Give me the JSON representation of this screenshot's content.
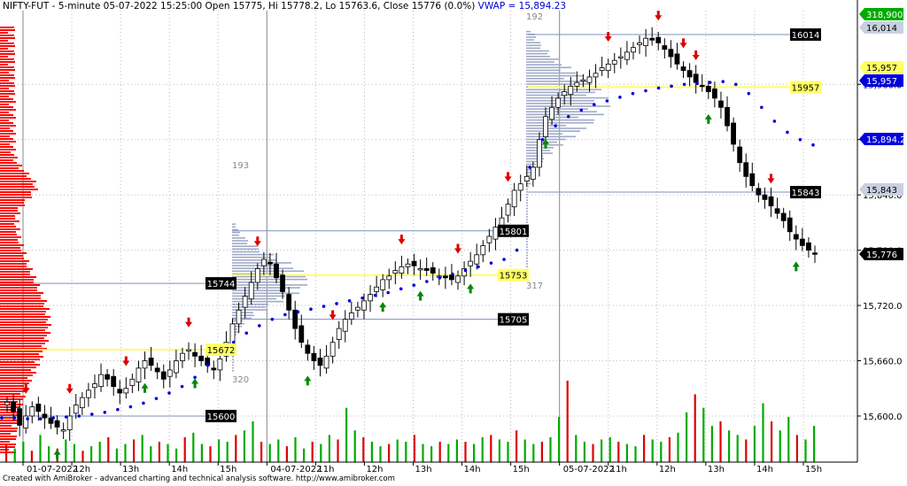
{
  "header": {
    "symbol": "NIFTY-FUT",
    "interval": "5-minute",
    "datetime": "05-07-2022 15:25:00",
    "ohlc_text": "Open 15775, Hi 15778.2, Lo 15763.6, Close 15776 (0.0%)",
    "vwap_text": "VWAP = 15,894.23"
  },
  "footer": {
    "credit": "Created with AmiBroker - advanced charting and technical analysis software. http://www.amibroker.com"
  },
  "colors": {
    "up_candle": "#ffffff",
    "down_candle": "#000000",
    "vwap": "#0000dd",
    "volume_up": "#00aa00",
    "volume_down": "#dd0000",
    "vol_profile": "#a0aac8",
    "left_profile": "#ff0000",
    "level_line": "#7f8fbf",
    "highlight_line": "#ffff66",
    "buy_arrow": "#008800",
    "sell_arrow": "#dd0000"
  },
  "chart_data": {
    "type": "candlestick",
    "y_range": [
      15550,
      16040
    ],
    "y_ticks": [
      "15,600.0",
      "15,660.0",
      "15,720.0",
      "15,780.0",
      "15,840.0",
      "15,900.0",
      "15,960.0"
    ],
    "x_labels": [
      "01-07-2022",
      "12h",
      "13h",
      "14h",
      "15h",
      "04-07-2022",
      "11h",
      "12h",
      "13h",
      "14h",
      "15h",
      "05-07-2022",
      "11h",
      "12h",
      "13h",
      "14h",
      "15h"
    ],
    "close_series": [
      15615,
      15605,
      15590,
      15600,
      15610,
      15605,
      15598,
      15592,
      15588,
      15585,
      15600,
      15612,
      15620,
      15628,
      15635,
      15645,
      15640,
      15632,
      15625,
      15630,
      15640,
      15652,
      15660,
      15655,
      15648,
      15640,
      15650,
      15660,
      15668,
      15672,
      15665,
      15660,
      15655,
      15650,
      15662,
      15680,
      15700,
      15715,
      15730,
      15745,
      15760,
      15770,
      15765,
      15750,
      15735,
      15715,
      15695,
      15680,
      15668,
      15660,
      15655,
      15665,
      15680,
      15695,
      15705,
      15712,
      15718,
      15725,
      15732,
      15740,
      15748,
      15752,
      15758,
      15762,
      15765,
      15763,
      15760,
      15758,
      15755,
      15752,
      15750,
      15748,
      15752,
      15760,
      15768,
      15775,
      15785,
      15795,
      15805,
      15815,
      15830,
      15845,
      15852,
      15860,
      15870,
      15900,
      15925,
      15935,
      15945,
      15952,
      15958,
      15962,
      15965,
      15968,
      15972,
      15978,
      15982,
      15986,
      15990,
      15995,
      16000,
      16005,
      16010,
      16008,
      16005,
      15998,
      15990,
      15982,
      15975,
      15968,
      15962,
      15958,
      15952,
      15945,
      15935,
      15915,
      15895,
      15875,
      15860,
      15850,
      15840,
      15835,
      15828,
      15820,
      15812,
      15800,
      15792,
      15785,
      15780,
      15776
    ],
    "vwap": [
      15598,
      15598,
      15597,
      15597,
      15598,
      15599,
      15600,
      15602,
      15604,
      15607,
      15610,
      15614,
      15619,
      15625,
      15632,
      15642,
      15655,
      15668,
      15680,
      15690,
      15698,
      15705,
      15710,
      15713,
      15716,
      15719,
      15722,
      15725,
      15728,
      15731,
      15734,
      15738,
      15742,
      15746,
      15750,
      15754,
      15758,
      15762,
      15766,
      15770,
      15780,
      15870,
      15900,
      15915,
      15925,
      15932,
      15938,
      15942,
      15946,
      15950,
      15953,
      15956,
      15958,
      15960,
      15961,
      15962,
      15963,
      15960,
      15950,
      15935,
      15920,
      15908,
      15900,
      15894.23
    ],
    "volume": [
      8,
      6,
      9,
      5,
      12,
      7,
      6,
      10,
      8,
      5,
      7,
      9,
      11,
      6,
      8,
      10,
      12,
      7,
      9,
      8,
      6,
      11,
      13,
      8,
      7,
      10,
      9,
      12,
      14,
      18,
      9,
      8,
      10,
      7,
      11,
      6,
      9,
      8,
      12,
      10,
      24,
      14,
      11,
      9,
      7,
      8,
      10,
      9,
      12,
      8,
      7,
      9,
      8,
      10,
      9,
      8,
      11,
      12,
      10,
      9,
      14,
      10,
      8,
      9,
      11,
      20,
      36,
      12,
      9,
      8,
      10,
      11,
      9,
      8,
      7,
      12,
      10,
      9,
      11,
      13,
      22,
      30,
      24,
      16,
      18,
      14,
      12,
      10,
      16,
      26,
      18,
      14,
      20,
      12,
      10,
      16
    ],
    "levels": [
      {
        "label": "16014",
        "price": 16014,
        "style": "level"
      },
      {
        "label": "15957",
        "price": 15957,
        "style": "yellow"
      },
      {
        "label": "15843",
        "price": 15843,
        "style": "level"
      },
      {
        "label": "15801",
        "price": 15801,
        "style": "level"
      },
      {
        "label": "15753",
        "price": 15753,
        "style": "yellow"
      },
      {
        "label": "15744",
        "price": 15744,
        "style": "level"
      },
      {
        "label": "15705",
        "price": 15705,
        "style": "level"
      },
      {
        "label": "15672",
        "price": 15672,
        "style": "yellow"
      },
      {
        "label": "15600",
        "price": 15600,
        "style": "level"
      }
    ],
    "profile_labels": [
      {
        "text": "193"
      },
      {
        "text": "320"
      },
      {
        "text": "192"
      },
      {
        "text": "317"
      }
    ],
    "right_labels": [
      {
        "text": "318,900",
        "kind": "green"
      },
      {
        "text": "16,014",
        "kind": "grey"
      },
      {
        "text": "15,957",
        "kind": "yellow"
      },
      {
        "text": "15,957",
        "kind": "blue"
      },
      {
        "text": "15,894.2",
        "kind": "blue"
      },
      {
        "text": "15,843",
        "kind": "grey"
      },
      {
        "text": "15,776",
        "kind": "black"
      }
    ]
  }
}
